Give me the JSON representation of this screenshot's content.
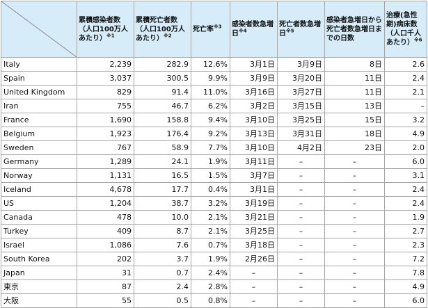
{
  "table": {
    "headers": [
      {
        "title": "累積感染者数",
        "sub": "（人口100万人あたり）",
        "note": "※1"
      },
      {
        "title": "累積死亡者数",
        "sub": "（人口100万人あたり）",
        "note": "※2"
      },
      {
        "title": "死亡率",
        "sub": "",
        "note": "※3"
      },
      {
        "title": "感染者数急増日",
        "sub": "",
        "note": "※4"
      },
      {
        "title": "死亡者数急増日",
        "sub": "",
        "note": "※5"
      },
      {
        "title": "感染者急増日から死亡者数急増日までの日数",
        "sub": "",
        "note": ""
      },
      {
        "title": "治療(急性期)病床数",
        "sub": "（人口千人あたり）",
        "note": "※6"
      }
    ],
    "rows": [
      [
        "Italy",
        "2,239",
        "282.9",
        "12.6%",
        "3月1日",
        "3月9日",
        "8日",
        "2.6"
      ],
      [
        "Spain",
        "3,037",
        "300.5",
        "9.9%",
        "3月9日",
        "3月20日",
        "11日",
        "2.4"
      ],
      [
        "United Kingdom",
        "829",
        "91.4",
        "11.0%",
        "3月16日",
        "3月27日",
        "11日",
        "2.1"
      ],
      [
        "Iran",
        "755",
        "46.7",
        "6.2%",
        "3月2日",
        "3月15日",
        "13日",
        "–"
      ],
      [
        "France",
        "1,690",
        "158.8",
        "9.4%",
        "3月10日",
        "3月25日",
        "15日",
        "3.2"
      ],
      [
        "Belgium",
        "1,923",
        "176.4",
        "9.2%",
        "3月13日",
        "3月31日",
        "18日",
        "4.9"
      ],
      [
        "Sweden",
        "767",
        "58.9",
        "7.7%",
        "3月10日",
        "4月2日",
        "23日",
        "2.0"
      ],
      [
        "Germany",
        "1,289",
        "24.1",
        "1.9%",
        "3月11日",
        "–",
        "–",
        "6.0"
      ],
      [
        "Norway",
        "1,131",
        "16.5",
        "1.5%",
        "3月7日",
        "–",
        "–",
        "3.1"
      ],
      [
        "Iceland",
        "4,678",
        "17.7",
        "0.4%",
        "3月1日",
        "–",
        "–",
        "2.4"
      ],
      [
        "US",
        "1,204",
        "38.7",
        "3.2%",
        "3月19日",
        "–",
        "–",
        "2.4"
      ],
      [
        "Canada",
        "478",
        "10.0",
        "2.1%",
        "3月21日",
        "–",
        "–",
        "1.9"
      ],
      [
        "Turkey",
        "409",
        "8.7",
        "2.1%",
        "3月25日",
        "–",
        "–",
        "2.7"
      ],
      [
        "Israel",
        "1,086",
        "7.6",
        "0.7%",
        "3月18日",
        "–",
        "–",
        "2.3"
      ],
      [
        "South Korea",
        "202",
        "3.7",
        "1.9%",
        "2月26日",
        "–",
        "–",
        "7.2"
      ],
      [
        "Japan",
        "31",
        "0.7",
        "2.4%",
        "–",
        "–",
        "–",
        "7.8"
      ],
      [
        "東京",
        "87",
        "2.4",
        "2.8%",
        "–",
        "–",
        "–",
        "4.9"
      ],
      [
        "大阪",
        "55",
        "0.5",
        "0.8%",
        "–",
        "–",
        "–",
        "6.0"
      ]
    ]
  },
  "colors": {
    "header_bg": "#d6ecf8",
    "border": "#a6a6a6",
    "text": "#111111"
  }
}
